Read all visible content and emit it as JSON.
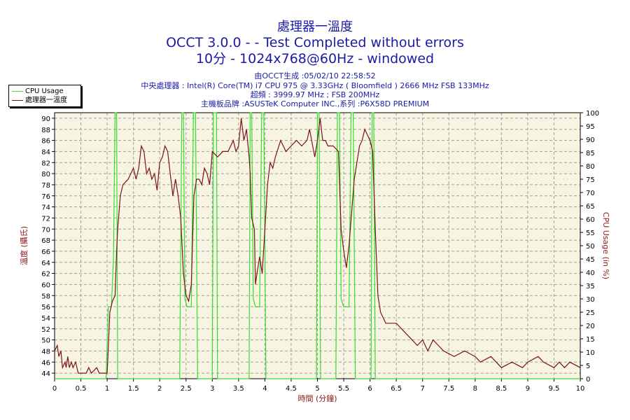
{
  "title": {
    "line1": "處理器一溫度",
    "line2": "OCCT 3.0.0 -  - Test Completed without errors",
    "line3": "10分 - 1024x768@60Hz - windowed"
  },
  "info": {
    "line1": "由OCCT生成 :05/02/10 22:58:52",
    "line2": "中央處理器 : Intel(R) Core(TM) i7 CPU 975 @ 3.33GHz ( Bloomfield ) 2666 MHz FSB 133MHz",
    "line3": "超頻 : 3999.97 MHz ; FSB 200MHz",
    "line4": "主機板品牌 :ASUSTeK Computer INC.,系列 :P6X58D PREMIUM"
  },
  "colors": {
    "plot_bg": "#f8f4e2",
    "grid": "#a0a0a0",
    "cpu_usage": "#33dd33",
    "temperature": "#7a1414",
    "title": "#1a1aa6",
    "axis_label": "#8b1a1a"
  },
  "chart_data": {
    "type": "line",
    "xlabel": "時間 (分鐘)",
    "ylabel_left": "溫度 (攝氏)",
    "ylabel_right": "CPU Usage (in %)",
    "xlim": [
      0,
      10
    ],
    "ylim_left": [
      43,
      91
    ],
    "ylim_right": [
      0,
      100
    ],
    "x_ticks": [
      "0",
      "0.5",
      "1",
      "1.5",
      "2",
      "2.5",
      "3",
      "3.5",
      "4",
      "4.5",
      "5",
      "5.5",
      "6",
      "6.5",
      "7",
      "7.5",
      "8",
      "8.5",
      "9",
      "9.5",
      "10"
    ],
    "y_left_ticks": [
      "44",
      "46",
      "48",
      "50",
      "52",
      "54",
      "56",
      "58",
      "60",
      "62",
      "64",
      "66",
      "68",
      "70",
      "72",
      "74",
      "76",
      "78",
      "80",
      "82",
      "84",
      "86",
      "88",
      "90"
    ],
    "y_right_ticks": [
      "0",
      "5",
      "10",
      "15",
      "20",
      "25",
      "30",
      "35",
      "40",
      "45",
      "50",
      "55",
      "60",
      "65",
      "70",
      "75",
      "80",
      "85",
      "90",
      "95",
      "100"
    ],
    "grid": true,
    "legend_position": "top-left",
    "series": [
      {
        "name": "CPU Usage",
        "axis": "right",
        "points": [
          [
            0,
            0
          ],
          [
            0.98,
            0
          ],
          [
            1.02,
            27
          ],
          [
            1.08,
            27
          ],
          [
            1.12,
            45
          ],
          [
            1.15,
            100
          ],
          [
            1.18,
            100
          ],
          [
            1.2,
            0
          ],
          [
            2.38,
            0
          ],
          [
            2.42,
            100
          ],
          [
            2.45,
            100
          ],
          [
            2.48,
            30
          ],
          [
            2.52,
            27
          ],
          [
            2.6,
            27
          ],
          [
            2.64,
            100
          ],
          [
            2.68,
            100
          ],
          [
            2.72,
            0
          ],
          [
            3.0,
            0
          ],
          [
            3.02,
            100
          ],
          [
            3.08,
            100
          ],
          [
            3.1,
            0
          ],
          [
            3.7,
            0
          ],
          [
            3.72,
            100
          ],
          [
            3.75,
            100
          ],
          [
            3.78,
            30
          ],
          [
            3.82,
            27
          ],
          [
            3.9,
            27
          ],
          [
            3.94,
            100
          ],
          [
            3.98,
            100
          ],
          [
            4.02,
            0
          ],
          [
            4.98,
            0
          ],
          [
            5.0,
            100
          ],
          [
            5.03,
            100
          ],
          [
            5.06,
            0
          ],
          [
            5.35,
            0
          ],
          [
            5.38,
            100
          ],
          [
            5.42,
            100
          ],
          [
            5.45,
            30
          ],
          [
            5.5,
            27
          ],
          [
            5.6,
            27
          ],
          [
            5.64,
            100
          ],
          [
            5.68,
            100
          ],
          [
            5.72,
            0
          ],
          [
            6.02,
            0
          ],
          [
            6.04,
            100
          ],
          [
            6.07,
            100
          ],
          [
            6.1,
            0
          ],
          [
            10,
            0
          ]
        ]
      },
      {
        "name": "處理器一溫度",
        "axis": "left",
        "points": [
          [
            0,
            48
          ],
          [
            0.05,
            49
          ],
          [
            0.08,
            47
          ],
          [
            0.12,
            48
          ],
          [
            0.15,
            45
          ],
          [
            0.2,
            46
          ],
          [
            0.22,
            45
          ],
          [
            0.25,
            47
          ],
          [
            0.28,
            45
          ],
          [
            0.32,
            46
          ],
          [
            0.35,
            45
          ],
          [
            0.4,
            46
          ],
          [
            0.45,
            44
          ],
          [
            0.6,
            44
          ],
          [
            0.65,
            45
          ],
          [
            0.7,
            44
          ],
          [
            0.8,
            45
          ],
          [
            0.85,
            44
          ],
          [
            1.0,
            44
          ],
          [
            1.05,
            55
          ],
          [
            1.1,
            57
          ],
          [
            1.15,
            58
          ],
          [
            1.18,
            66
          ],
          [
            1.2,
            70
          ],
          [
            1.25,
            76
          ],
          [
            1.3,
            78
          ],
          [
            1.4,
            79
          ],
          [
            1.5,
            81
          ],
          [
            1.55,
            79
          ],
          [
            1.6,
            81
          ],
          [
            1.65,
            85
          ],
          [
            1.7,
            84
          ],
          [
            1.75,
            80
          ],
          [
            1.8,
            81
          ],
          [
            1.85,
            79
          ],
          [
            1.9,
            80
          ],
          [
            1.95,
            77
          ],
          [
            2.0,
            82
          ],
          [
            2.05,
            83
          ],
          [
            2.1,
            85
          ],
          [
            2.15,
            84
          ],
          [
            2.2,
            80
          ],
          [
            2.25,
            76
          ],
          [
            2.3,
            79
          ],
          [
            2.35,
            76
          ],
          [
            2.4,
            72
          ],
          [
            2.45,
            62
          ],
          [
            2.5,
            58
          ],
          [
            2.55,
            57
          ],
          [
            2.6,
            60
          ],
          [
            2.65,
            76
          ],
          [
            2.7,
            79
          ],
          [
            2.75,
            79
          ],
          [
            2.8,
            78
          ],
          [
            2.85,
            81
          ],
          [
            2.9,
            80
          ],
          [
            2.95,
            78
          ],
          [
            3.0,
            84
          ],
          [
            3.1,
            83
          ],
          [
            3.2,
            84
          ],
          [
            3.3,
            84
          ],
          [
            3.4,
            86
          ],
          [
            3.45,
            84
          ],
          [
            3.5,
            85
          ],
          [
            3.55,
            90
          ],
          [
            3.6,
            86
          ],
          [
            3.65,
            88
          ],
          [
            3.7,
            83
          ],
          [
            3.72,
            80
          ],
          [
            3.75,
            72
          ],
          [
            3.8,
            70
          ],
          [
            3.82,
            60
          ],
          [
            3.85,
            62
          ],
          [
            3.9,
            65
          ],
          [
            3.95,
            62
          ],
          [
            4.0,
            70
          ],
          [
            4.05,
            78
          ],
          [
            4.1,
            82
          ],
          [
            4.15,
            81
          ],
          [
            4.2,
            83
          ],
          [
            4.3,
            86
          ],
          [
            4.35,
            85
          ],
          [
            4.4,
            84
          ],
          [
            4.5,
            85
          ],
          [
            4.6,
            86
          ],
          [
            4.7,
            85
          ],
          [
            4.8,
            86
          ],
          [
            4.85,
            88
          ],
          [
            4.95,
            83
          ],
          [
            5.0,
            86
          ],
          [
            5.05,
            90
          ],
          [
            5.1,
            86
          ],
          [
            5.15,
            86
          ],
          [
            5.2,
            85
          ],
          [
            5.3,
            85
          ],
          [
            5.4,
            84
          ],
          [
            5.45,
            70
          ],
          [
            5.5,
            66
          ],
          [
            5.55,
            63
          ],
          [
            5.6,
            67
          ],
          [
            5.7,
            79
          ],
          [
            5.8,
            85
          ],
          [
            5.85,
            86
          ],
          [
            5.9,
            88
          ],
          [
            6.0,
            86
          ],
          [
            6.05,
            84
          ],
          [
            6.1,
            70
          ],
          [
            6.15,
            58
          ],
          [
            6.2,
            55
          ],
          [
            6.3,
            53
          ],
          [
            6.5,
            53
          ],
          [
            6.6,
            52
          ],
          [
            6.7,
            51
          ],
          [
            6.8,
            50
          ],
          [
            6.9,
            49
          ],
          [
            7.0,
            50
          ],
          [
            7.1,
            48
          ],
          [
            7.2,
            50
          ],
          [
            7.3,
            49
          ],
          [
            7.4,
            48
          ],
          [
            7.6,
            47
          ],
          [
            7.8,
            48
          ],
          [
            8.0,
            47
          ],
          [
            8.1,
            46
          ],
          [
            8.3,
            47
          ],
          [
            8.5,
            45
          ],
          [
            8.7,
            46
          ],
          [
            8.9,
            45
          ],
          [
            9.0,
            46
          ],
          [
            9.2,
            47
          ],
          [
            9.3,
            46
          ],
          [
            9.5,
            45
          ],
          [
            9.6,
            46
          ],
          [
            9.7,
            45
          ],
          [
            9.8,
            46
          ],
          [
            10.0,
            45
          ]
        ]
      }
    ]
  }
}
